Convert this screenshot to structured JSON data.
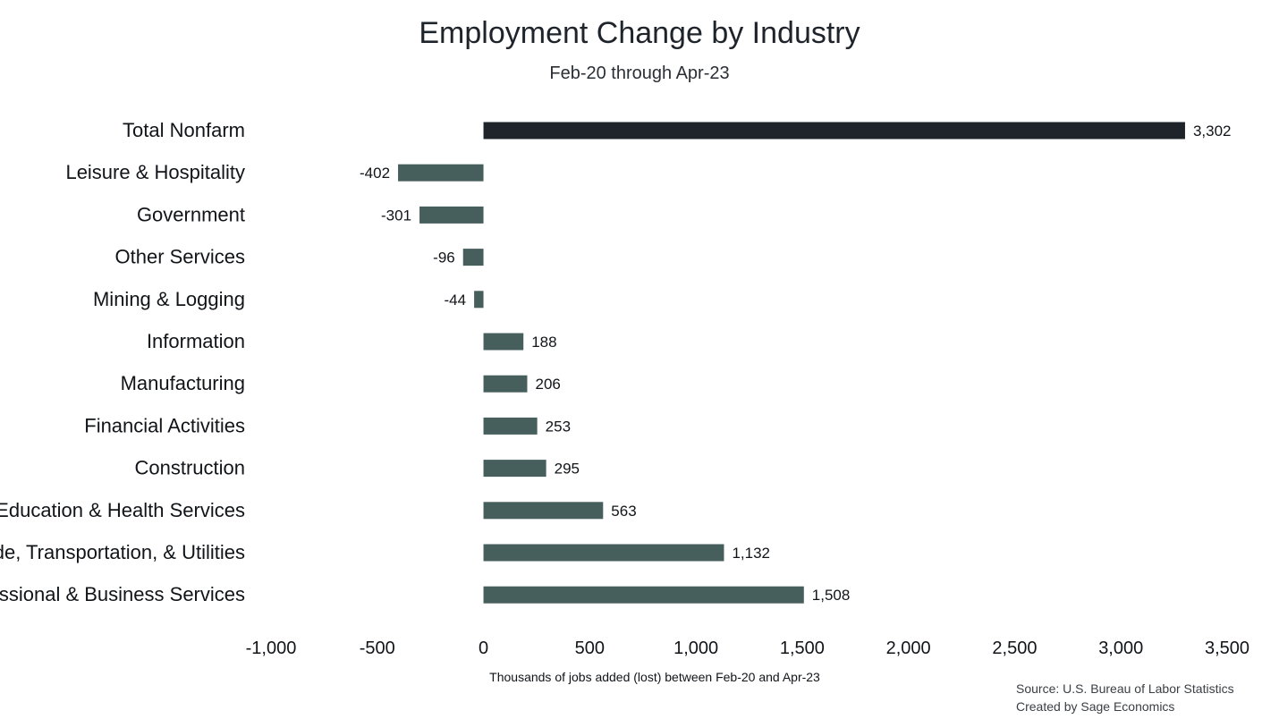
{
  "chart_data": {
    "type": "bar",
    "orientation": "horizontal",
    "title": "Employment Change by Industry",
    "subtitle": "Feb-20 through Apr-23",
    "xlabel": "Thousands of jobs added (lost) between Feb-20 and Apr-23",
    "ylabel": "",
    "xlim": [
      -1000,
      3500
    ],
    "x_ticks": [
      -1000,
      -500,
      0,
      500,
      1000,
      1500,
      2000,
      2500,
      3000,
      3500
    ],
    "x_tick_labels": [
      "-1,000",
      "-500",
      "0",
      "500",
      "1,000",
      "1,500",
      "2,000",
      "2,500",
      "3,000",
      "3,500"
    ],
    "grid": false,
    "legend": "none",
    "categories": [
      "Total Nonfarm",
      "Leisure & Hospitality",
      "Government",
      "Other Services",
      "Mining & Logging",
      "Information",
      "Manufacturing",
      "Financial Activities",
      "Construction",
      "Education & Health Services",
      "Trade, Transportation, & Utilities",
      "Professional & Business Services"
    ],
    "values": [
      3302,
      -402,
      -301,
      -96,
      -44,
      188,
      206,
      253,
      295,
      563,
      1132,
      1508
    ],
    "value_labels": [
      "3,302",
      "-402",
      "-301",
      "-96",
      "-44",
      "188",
      "206",
      "253",
      "295",
      "563",
      "1,132",
      "1,508"
    ],
    "colors": {
      "highlight": "#1f242b",
      "default": "#475f5c"
    },
    "highlight_categories": [
      "Total Nonfarm"
    ]
  },
  "source": {
    "line1": "Source: U.S. Bureau of Labor Statistics",
    "line2": "Created by Sage Economics"
  }
}
